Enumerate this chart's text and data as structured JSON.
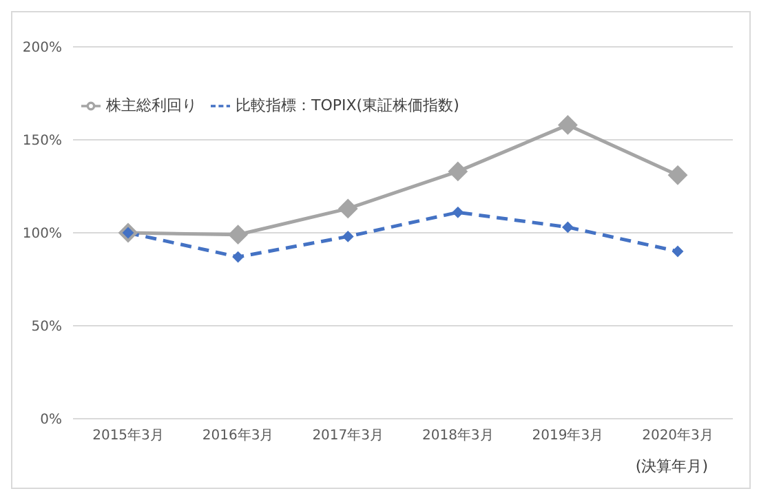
{
  "chart_data": {
    "type": "line",
    "categories": [
      "2015年3月",
      "2016年3月",
      "2017年3月",
      "2018年3月",
      "2019年3月",
      "2020年3月"
    ],
    "xlabel": "(決算年月)",
    "series": [
      {
        "name": "株主総利回り",
        "color": "#a5a5a5",
        "values": [
          100,
          99,
          113,
          133,
          158,
          131
        ],
        "line_style": "solid"
      },
      {
        "name": "比較指標：TOPIX(東証株価指数)",
        "color": "#4472c4",
        "values": [
          100,
          87,
          98,
          111,
          103,
          90
        ],
        "line_style": "dashed"
      }
    ],
    "ylim": [
      0,
      200
    ],
    "yticks": [
      {
        "value": 0,
        "label": "0%"
      },
      {
        "value": 50,
        "label": "50%"
      },
      {
        "value": 100,
        "label": "100%"
      },
      {
        "value": 150,
        "label": "150%"
      },
      {
        "value": 200,
        "label": "200%"
      }
    ],
    "grid": "y",
    "legend": "top left",
    "marker": "diamond"
  }
}
